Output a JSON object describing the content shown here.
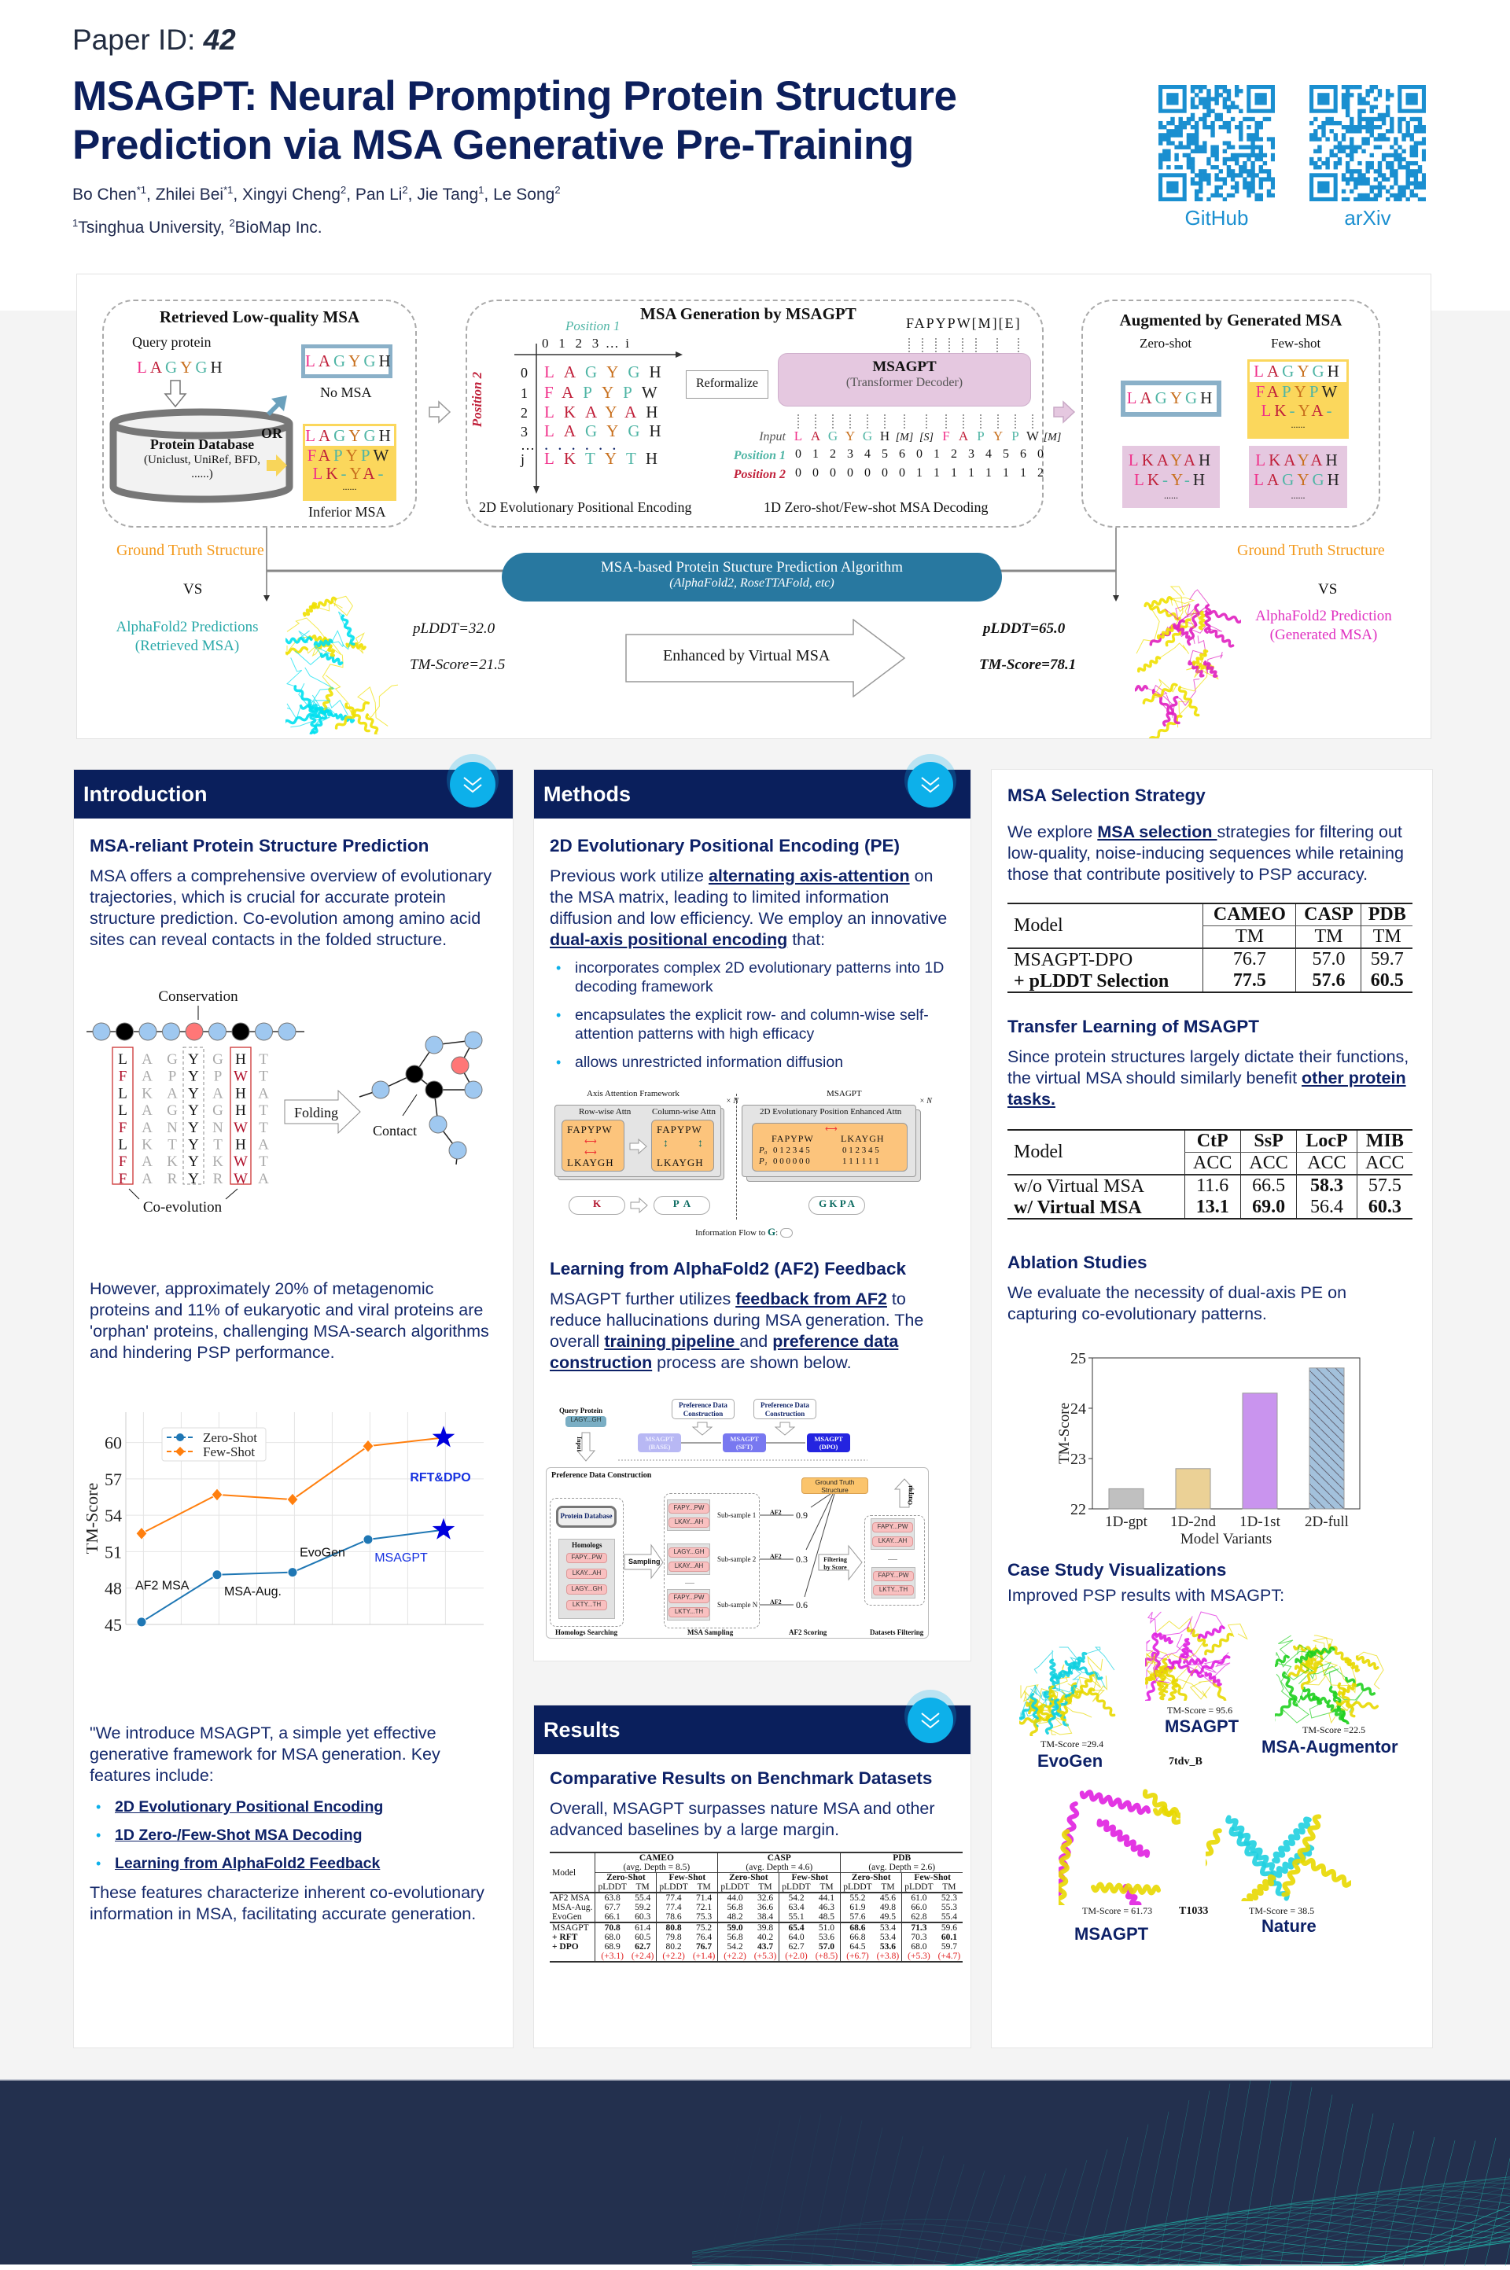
{
  "header": {
    "paper_id_label": "Paper ID: ",
    "paper_id": "42",
    "title_line1": "MSAGPT: Neural Prompting Protein Structure",
    "title_line2": "Prediction via MSA Generative Pre-Training",
    "authors": [
      {
        "name": "Bo Chen",
        "sup": "*1"
      },
      {
        "name": "Zhilei Bei",
        "sup": "*1"
      },
      {
        "name": "Xingyi Cheng",
        "sup": "2"
      },
      {
        "name": "Pan Li",
        "sup": "2"
      },
      {
        "name": "Jie Tang",
        "sup": "1"
      },
      {
        "name": "Le Song",
        "sup": "2"
      }
    ],
    "affiliations": [
      {
        "sup": "1",
        "name": "Tsinghua University"
      },
      {
        "sup": "2",
        "name": "BioMap Inc."
      }
    ],
    "qr_codes": [
      {
        "label": "GitHub",
        "icon": "qr-code"
      },
      {
        "label": "arXiv",
        "icon": "qr-code"
      }
    ],
    "qr_color": "#1a8fd0"
  },
  "overview": {
    "box1": {
      "title": "Retrieved Low-quality MSA",
      "query_label": "Query protein",
      "query_seq": "LAGYGH",
      "db_title": "Protein Database",
      "db_sub": "(Uniclust, UniRef, BFD,",
      "db_sub2": "......)",
      "or": "OR",
      "no_msa_seq": "LAGYGH",
      "no_msa_label": "No MSA",
      "inferior": [
        "LAGYGH",
        "FAPYPW",
        "LK-YA-",
        "......"
      ],
      "inferior_label": "Inferior MSA"
    },
    "box2": {
      "title": "MSA Generation by MSAGPT",
      "position1": "Position 1",
      "position2": "Position 2",
      "col_header": "0   1   2   3  …  i",
      "grid": [
        {
          "idx": "0",
          "seq": "LAGYGH"
        },
        {
          "idx": "1",
          "seq": "FAPYPW"
        },
        {
          "idx": "2",
          "seq": "LKAYAH"
        },
        {
          "idx": "3",
          "seq": "LAGYGH"
        },
        {
          "idx": "…",
          "seq": "......"
        },
        {
          "idx": "j",
          "seq": "LKTYTH"
        }
      ],
      "reformalize": "Reformalize",
      "model": "MSAGPT",
      "model_sub": "(Transformer Decoder)",
      "output": "FAPYPW[M][E]",
      "input_label": "Input",
      "pos1_label": "Position 1",
      "pos2_label": "Position 2",
      "tokens": [
        "L",
        "A",
        "G",
        "Y",
        "G",
        "H",
        "[M]",
        "[S]",
        "F",
        "A",
        "P",
        "Y",
        "P",
        "W",
        "[M]"
      ],
      "pos1": [
        "0",
        "1",
        "2",
        "3",
        "4",
        "5",
        "6",
        "0",
        "1",
        "2",
        "3",
        "4",
        "5",
        "6",
        "0"
      ],
      "pos2": [
        "0",
        "0",
        "0",
        "0",
        "0",
        "0",
        "0",
        "1",
        "1",
        "1",
        "1",
        "1",
        "1",
        "1",
        "2"
      ],
      "caption_left": "2D Evolutionary Positional Encoding",
      "caption_right": "1D Zero-shot/Few-shot MSA Decoding"
    },
    "box3": {
      "title": "Augmented by Generated MSA",
      "zero_shot": "Zero-shot",
      "few_shot": "Few-shot",
      "zero_query": "LAGYGH",
      "few_input": [
        "LAGYGH",
        "FAPYPW",
        "LK-YA-",
        "......"
      ],
      "zero_gen": [
        "LKAYAH",
        "LK-Y-H",
        "......"
      ],
      "few_gen": [
        "LKAYAH",
        "LAGYGH",
        "......"
      ]
    },
    "algorithm": "MSA-based Protein Stucture Prediction Algorithm",
    "algorithm_sub": "(AlphaFold2, RoseTTAFold, etc)",
    "gt_left": "Ground Truth Structure",
    "vs": "VS",
    "pred_left_1": "AlphaFold2 Predictions",
    "pred_left_2": "(Retrieved MSA)",
    "plddt_left": "pLDDT=32.0",
    "tm_left": "TM-Score=21.5",
    "enhanced": "Enhanced by Virtual MSA",
    "plddt_right": "pLDDT=65.0",
    "tm_right": "TM-Score=78.1",
    "gt_right": "Ground Truth Structure",
    "pred_right_1": "AlphaFold2 Prediction",
    "pred_right_2": "(Generated MSA)",
    "colors": {
      "ground_truth": "#f39a1e",
      "retrieved": "#2aa9a9",
      "generated": "#e030c0",
      "pill": "#2878a0"
    }
  },
  "intro": {
    "title": "Introduction",
    "sub1": "MSA-reliant Protein Structure Prediction",
    "p1": "MSA offers a comprehensive overview of evolutionary trajectories, which is crucial for accurate protein structure prediction. Co-evolution among amino acid sites can reveal contacts in the folded structure.",
    "figure": {
      "conservation": "Conservation",
      "folding": "Folding",
      "contact": "Contact",
      "coevolution": "Co-evolution",
      "columns": [
        "LFLLFLFF",
        "AAKAAKAA",
        "GPAGNTKR",
        "YYYYYYYY",
        "GPAGNTKR",
        "HWHHWHWW",
        "TTATTATA"
      ]
    },
    "p2": "However, approximately 20% of metagenomic proteins and 11% of eukaryotic and viral proteins are 'orphan' proteins, challenging MSA-search algorithms and hindering PSP performance.",
    "p3": "\"We introduce MSAGPT, a simple yet effective generative framework for MSA generation. Key features include:",
    "features": [
      "2D Evolutionary Positional Encoding",
      "1D Zero-/Few-Shot MSA Decoding",
      "Learning from AlphaFold2 Feedback"
    ],
    "p4": "These features characterize inherent co-evolutionary information in MSA, facilitating accurate generation."
  },
  "methods": {
    "title": "Methods",
    "sub1": "2D Evolutionary Positional Encoding (PE)",
    "p1": [
      {
        "t": "Previous work utilize "
      },
      {
        "t": "alternating axis-attention",
        "link": true
      },
      {
        "t": " on the MSA matrix, leading to limited information diffusion and low efficiency. We employ an innovative "
      },
      {
        "t": "dual-axis positional encoding",
        "link": true
      },
      {
        "t": " that:"
      }
    ],
    "bullets": [
      "incorporates complex 2D evolutionary patterns into 1D decoding framework",
      "encapsulates the explicit row- and column-wise self-attention patterns with high efficacy",
      "allows unrestricted information diffusion"
    ],
    "fig1": {
      "axis_title": "Axis Attention Framework",
      "row": "Row-wise Attn",
      "col": "Column-wise Attn",
      "times_n": "× N",
      "msagpt": "MSAGPT",
      "enhanced": "2D Evolutionary Position Enhanced Attn",
      "top": "FAPYPW",
      "bottom": "LKAYGH",
      "p0": "P₀",
      "p1": "P₁",
      "p0_vals": "0 1 2 3 4 5",
      "p1_vals_a": "0 0 0 0 0 0",
      "p1_vals_b": "1 1 1 1 1 1",
      "cloud_a": "K",
      "cloud_b": "P  A",
      "cloud_c": "G K P A",
      "flow": "Information Flow to ",
      "flow_g": "G",
      ":": ":"
    },
    "sub2": "Learning from AlphaFold2 (AF2) Feedback",
    "p2": [
      {
        "t": "MSAGPT further utilizes "
      },
      {
        "t": "feedback from AF2",
        "link": true
      },
      {
        "t": " to reduce hallucinations during MSA generation. The overall "
      },
      {
        "t": "training pipeline ",
        "link": true
      },
      {
        "t": "and "
      },
      {
        "t": "preference data construction",
        "link": true
      },
      {
        "t": " process are shown below."
      }
    ],
    "fig2": {
      "query_label": "Query Protein",
      "query": "LAGY...GH",
      "input": "Input",
      "pdc1": "Preference Data Construction",
      "pdc2": "Preference Data Construction",
      "base": "MSAGPT (BASE)",
      "sft": "MSAGPT (SFT)",
      "dpo": "MSAGPT (DPO)",
      "box_title": "Preference Data Construction",
      "db": "Protein Database",
      "homologs": "Homologs",
      "homolog_items": [
        "FAPY...PW",
        "LKAY...AH",
        "LAGY...GH",
        "LKTY...TH"
      ],
      "sampling": "Sampling",
      "subsamples": [
        {
          "label": "Sub-sample 1",
          "items": [
            "FAPY...PW",
            "LKAY...AH"
          ],
          "score": "0.9"
        },
        {
          "label": "Sub-sample 2",
          "items": [
            "LAGY...GH",
            "LKAY...AH"
          ],
          "score": "0.3"
        },
        {
          "label": "Sub-sample N",
          "items": [
            "FAPY...PW",
            "LKTY...TH"
          ],
          "score": "0.6"
        }
      ],
      "af2": "AF2",
      "gt": "Ground Truth Structure",
      "filter": "Filtering by Score",
      "output": "Output",
      "out_a": [
        "FAPY...PW",
        "LKAY...AH"
      ],
      "out_b": [
        "FAPY...PW",
        "LKTY...TH"
      ],
      "dots": "......",
      "stages": [
        "Homologs Searching",
        "MSA Sampling",
        "AF2 Scoring",
        "Datasets Filtering"
      ]
    }
  },
  "results": {
    "title": "Results",
    "sub1": "Comparative Results on Benchmark Datasets",
    "p1": "Overall, MSAGPT surpasses nature MSA and other advanced baselines by a large margin.",
    "table": {
      "model": "Model",
      "datasets": [
        {
          "name": "CAMEO",
          "depth": "(avg. Depth = 8.5)"
        },
        {
          "name": "CASP",
          "depth": "(avg. Depth = 4.6)"
        },
        {
          "name": "PDB",
          "depth": "(avg. Depth = 2.6)"
        }
      ],
      "settings": [
        "Zero-Shot",
        "Few-Shot"
      ],
      "metrics": [
        "pLDDT",
        "TM"
      ],
      "baselines": [
        {
          "model": "AF2 MSA",
          "values": [
            "63.8",
            "55.4",
            "77.4",
            "71.4",
            "44.0",
            "32.6",
            "54.2",
            "44.1",
            "55.2",
            "45.6",
            "61.0",
            "52.3"
          ]
        },
        {
          "model": "MSA-Aug.",
          "values": [
            "67.7",
            "59.2",
            "77.4",
            "72.1",
            "56.8",
            "36.6",
            "63.4",
            "46.3",
            "61.9",
            "49.8",
            "66.0",
            "55.3"
          ]
        },
        {
          "model": "EvoGen",
          "values": [
            "66.1",
            "60.3",
            "78.6",
            "75.3",
            "48.2",
            "38.4",
            "55.1",
            "48.5",
            "57.6",
            "49.5",
            "62.8",
            "55.4"
          ]
        }
      ],
      "ours": [
        {
          "model": "MSAGPT",
          "values": [
            "70.8",
            "61.4",
            "80.8",
            "75.2",
            "59.0",
            "39.8",
            "65.4",
            "51.0",
            "68.6",
            "53.4",
            "71.3",
            "59.6"
          ],
          "bold": [
            0,
            2,
            4,
            6,
            8,
            10
          ]
        },
        {
          "model": "+ RFT",
          "model_bold": true,
          "values": [
            "68.0",
            "60.5",
            "79.8",
            "76.4",
            "56.8",
            "40.2",
            "64.0",
            "53.6",
            "66.8",
            "53.4",
            "70.3",
            "60.1"
          ],
          "bold": [
            11
          ]
        },
        {
          "model": "+ DPO",
          "model_bold": true,
          "values": [
            "68.9",
            "62.7",
            "80.2",
            "76.7",
            "54.2",
            "43.7",
            "62.7",
            "57.0",
            "64.5",
            "53.6",
            "68.0",
            "59.7"
          ],
          "bold": [
            1,
            3,
            5,
            7,
            9
          ]
        }
      ],
      "dpo_gains": [
        "(+3.1)",
        "(+2.4)",
        "(+2.2)",
        "(+1.4)",
        "(+2.2)",
        "(+5.3)",
        "(+2.0)",
        "(+8.5)",
        "(+6.7)",
        "(+3.8)",
        "(+5.3)",
        "(+4.7)"
      ]
    }
  },
  "right": {
    "sel_title": "MSA Selection Strategy",
    "sel_p": [
      {
        "t": "We explore "
      },
      {
        "t": "MSA selection ",
        "link": true
      },
      {
        "t": "strategies for filtering out low-quality, noise-inducing sequences while retaining those that contribute positively to PSP accuracy."
      }
    ],
    "sel_table": {
      "model": "Model",
      "cols": [
        "CAMEO",
        "CASP",
        "PDB"
      ],
      "metric": "TM",
      "rows": [
        {
          "model": "MSAGPT-DPO",
          "values": [
            "76.7",
            "57.0",
            "59.7"
          ],
          "bold": false
        },
        {
          "model": "+ pLDDT Selection",
          "values": [
            "77.5",
            "57.6",
            "60.5"
          ],
          "bold": true
        }
      ]
    },
    "tl_title": "Transfer Learning of MSAGPT",
    "tl_p": [
      {
        "t": "Since protein structures largely dictate their functions, the virtual MSA should similarly benefit "
      },
      {
        "t": "other protein tasks.",
        "link": true
      }
    ],
    "tl_table": {
      "model": "Model",
      "cols": [
        "CtP",
        "SsP",
        "LocP",
        "MIB"
      ],
      "metric": "ACC",
      "rows": [
        {
          "model": "w/o Virtual MSA",
          "values": [
            "11.6",
            "66.5",
            "58.3",
            "57.5"
          ],
          "model_bold": false,
          "bold": [
            2
          ]
        },
        {
          "model": "w/ Virtual MSA",
          "values": [
            "13.1",
            "69.0",
            "56.4",
            "60.3"
          ],
          "model_bold": true,
          "bold": [
            0,
            1,
            3
          ]
        }
      ]
    },
    "abl_title": "Ablation Studies",
    "abl_p": "We evaluate the necessity of dual-axis PE on capturing co-evolutionary patterns.",
    "case_title": "Case Study Visualizations",
    "case_p": "Improved PSP results with MSAGPT:",
    "case": {
      "evogen_tm": "TM-Score =29.4",
      "evogen": "EvoGen",
      "msagpt_tm": "TM-Score = 95.6",
      "msagpt": "MSAGPT",
      "aug_tm": "TM-Score =22.5",
      "aug": "MSA-Augmentor",
      "target1": "7tdv_B",
      "msagpt2_tm": "TM-Score = 61.73",
      "msagpt2": "MSAGPT",
      "target2": "T1033",
      "nature_tm": "TM-Score = 38.5",
      "nature": "Nature"
    }
  },
  "chart_data": [
    {
      "type": "line",
      "ylabel": "TM-Score",
      "ylim": [
        45,
        62.5
      ],
      "yticks": [
        45,
        48,
        51,
        54,
        57,
        60
      ],
      "grid": true,
      "legend": "top-left",
      "categories": [
        "AF2 MSA",
        "MSA-Aug.",
        "EvoGen",
        "MSAGPT",
        "RFT&DPO"
      ],
      "series": [
        {
          "name": "Zero-Shot",
          "values": [
            45.2,
            49.1,
            49.3,
            52.0,
            52.8
          ],
          "color": "#1f77b4",
          "marker": "circle"
        },
        {
          "name": "Few-Shot",
          "values": [
            52.5,
            55.7,
            55.3,
            59.7,
            60.4
          ],
          "color": "#ff7f0e",
          "marker": "diamond"
        }
      ],
      "final_marker": "star",
      "highlight_color": "#0000dd"
    },
    {
      "type": "bar",
      "xlabel": "Model Variants",
      "ylabel": "TM-Score",
      "ylim": [
        22,
        25
      ],
      "yticks": [
        22,
        23,
        24,
        25
      ],
      "categories": [
        "1D-gpt",
        "1D-2nd",
        "1D-1st",
        "2D-full"
      ],
      "values": [
        22.4,
        22.8,
        24.3,
        24.8
      ],
      "colors": [
        "#c0c0c0",
        "#ebd196",
        "#c994ee",
        "#a3c1dc"
      ],
      "hatched": [
        false,
        false,
        false,
        true
      ]
    }
  ]
}
